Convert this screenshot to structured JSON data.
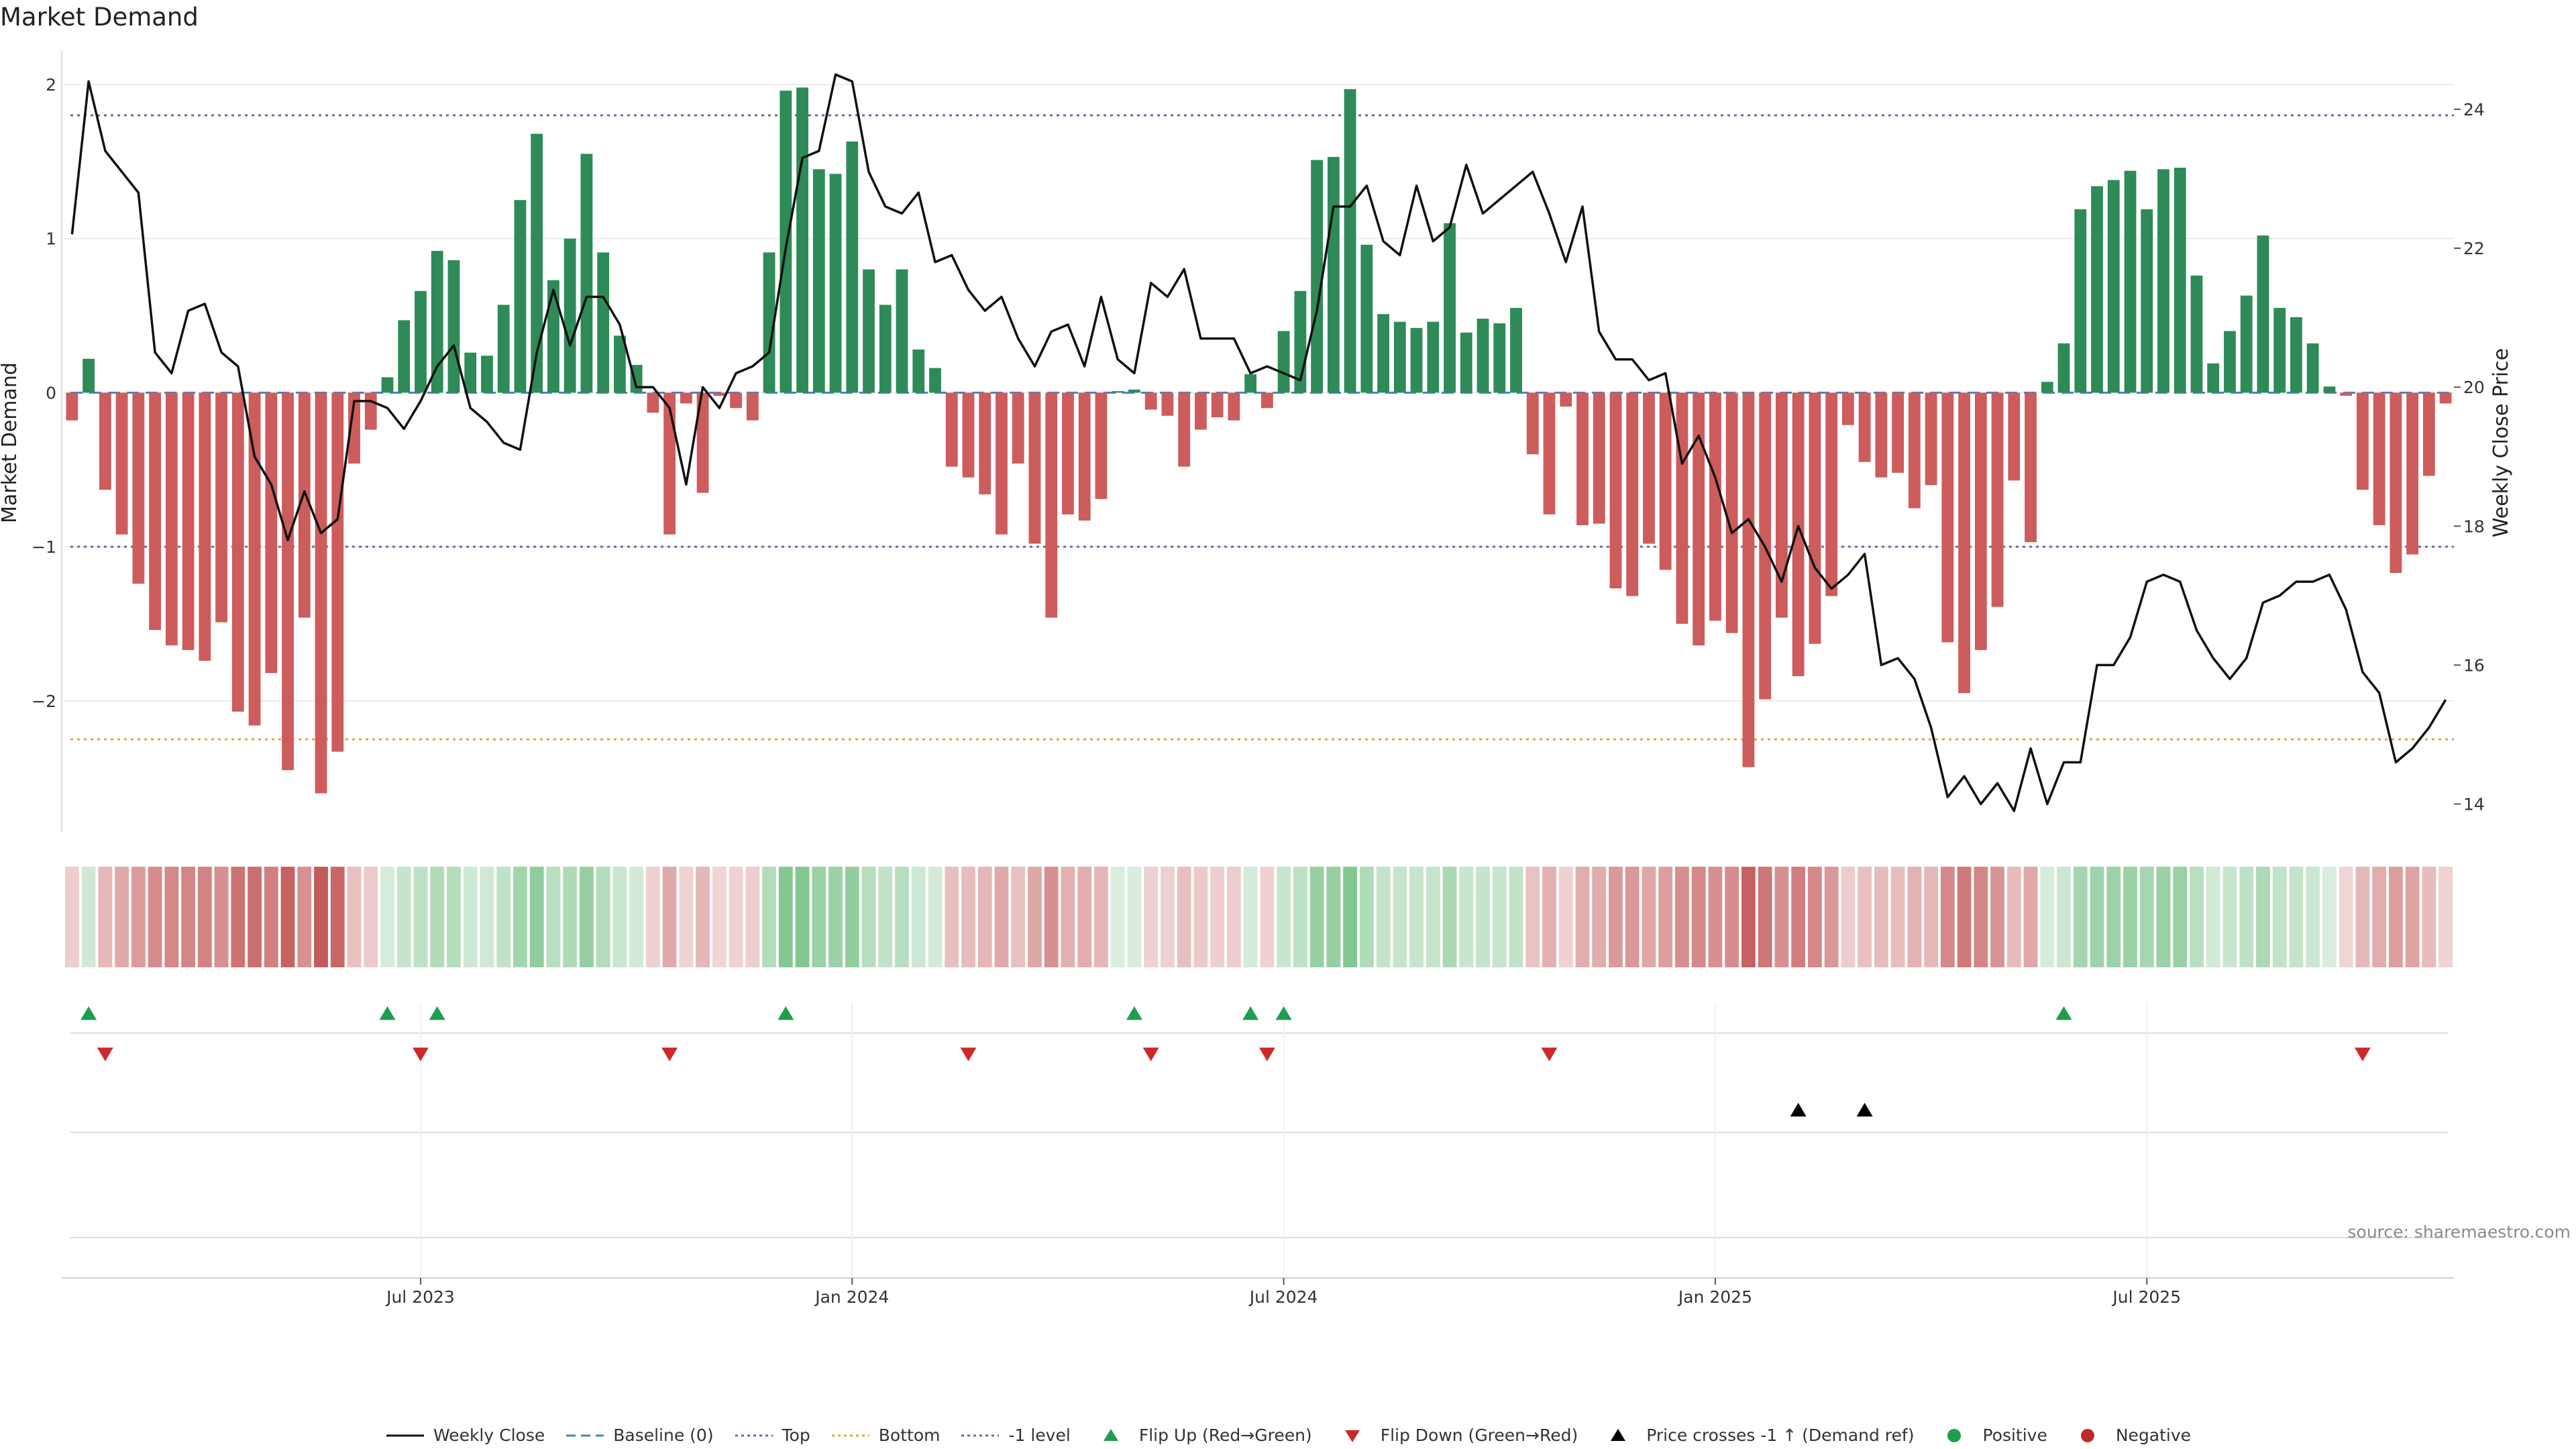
{
  "title": "Market Demand",
  "source": "source: sharemaestro.com",
  "colors": {
    "positive_bar": "#2e8b57",
    "negative_bar": "#cd5c5c",
    "price_line": "#111111",
    "baseline": "#4f7fbf",
    "top_line": "#6a6a9a",
    "bottom_line": "#e8a23a",
    "minus1_line": "#6a6a9a",
    "flip_up": "#1e9e4e",
    "flip_down": "#d02828",
    "price_cross": "#000000"
  },
  "legend": [
    {
      "label": "Weekly Close",
      "kind": "solid-line",
      "color": "#111111"
    },
    {
      "label": "Baseline (0)",
      "kind": "dashed-line",
      "color": "#4f7fbf"
    },
    {
      "label": "Top",
      "kind": "dotted-line",
      "color": "#6a6a9a"
    },
    {
      "label": "Bottom",
      "kind": "dotted-line",
      "color": "#e8a23a"
    },
    {
      "label": "-1 level",
      "kind": "dotted-line",
      "color": "#6a6a9a"
    },
    {
      "label": "Flip Up (Red→Green)",
      "kind": "triangle-up",
      "color": "#1e9e4e"
    },
    {
      "label": "Flip Down (Green→Red)",
      "kind": "triangle-down",
      "color": "#d02828"
    },
    {
      "label": "Price crosses -1 ↑ (Demand ref)",
      "kind": "triangle-up",
      "color": "#000000"
    },
    {
      "label": "Positive",
      "kind": "dot",
      "color": "#1e9e4e"
    },
    {
      "label": "Negative",
      "kind": "dot",
      "color": "#c02a2a"
    }
  ],
  "chart_data": {
    "type": "bar",
    "title": "Market Demand",
    "ylabel": "Market Demand",
    "y2label": "Weekly Close Price",
    "ylim": [
      -2.85,
      2.2
    ],
    "y_ticks": [
      -2,
      -1,
      0,
      1,
      2
    ],
    "y2lim": [
      13.6,
      24.8
    ],
    "y2_ticks": [
      14,
      16,
      18,
      20,
      22,
      24
    ],
    "reference_lines": {
      "baseline": 0,
      "top": 1.8,
      "bottom": -2.25,
      "minus1": -1
    },
    "x_tick_labels": [
      "Jul 2023",
      "Jan 2024",
      "Jul 2024",
      "Jan 2025",
      "Jul 2025"
    ],
    "x_tick_weeks": [
      21,
      47,
      73,
      99,
      125
    ],
    "grid": true,
    "legend_position": "bottom",
    "series": [
      {
        "name": "Market Demand",
        "values": [
          -0.18,
          0.22,
          -0.63,
          -0.92,
          -1.24,
          -1.54,
          -1.64,
          -1.67,
          -1.74,
          -1.49,
          -2.07,
          -2.16,
          -1.82,
          -2.45,
          -1.46,
          -2.6,
          -2.33,
          -0.46,
          -0.24,
          0.1,
          0.47,
          0.66,
          0.92,
          0.86,
          0.26,
          0.24,
          0.57,
          1.25,
          1.68,
          0.73,
          1.0,
          1.55,
          0.91,
          0.37,
          0.18,
          -0.13,
          -0.92,
          -0.07,
          -0.65,
          -0.02,
          -0.1,
          -0.18,
          0.91,
          1.96,
          1.98,
          1.45,
          1.42,
          1.63,
          0.8,
          0.57,
          0.8,
          0.28,
          0.16,
          -0.48,
          -0.55,
          -0.66,
          -0.92,
          -0.46,
          -0.98,
          -1.46,
          -0.79,
          -0.83,
          -0.69,
          0.01,
          0.02,
          -0.11,
          -0.15,
          -0.48,
          -0.24,
          -0.16,
          -0.18,
          0.12,
          -0.1,
          0.4,
          0.66,
          1.51,
          1.53,
          1.97,
          0.96,
          0.51,
          0.46,
          0.42,
          0.46,
          1.1,
          0.39,
          0.48,
          0.45,
          0.55,
          -0.4,
          -0.79,
          -0.09,
          -0.86,
          -0.85,
          -1.27,
          -1.32,
          -0.98,
          -1.15,
          -1.5,
          -1.64,
          -1.48,
          -1.56,
          -2.43,
          -1.99,
          -1.46,
          -1.84,
          -1.63,
          -1.32,
          -0.21,
          -0.45,
          -0.55,
          -0.52,
          -0.75,
          -0.6,
          -1.62,
          -1.95,
          -1.67,
          -1.39,
          -0.57,
          -0.97,
          0.07,
          0.32,
          1.19,
          1.34,
          1.38,
          1.44,
          1.19,
          1.45,
          1.46,
          0.76,
          0.19,
          0.4,
          0.63,
          1.02,
          0.55,
          0.49,
          0.32,
          0.04,
          -0.02,
          -0.63,
          -0.86,
          -1.17,
          -1.05,
          -0.54,
          -0.07
        ]
      },
      {
        "name": "Weekly Close",
        "values": [
          22.2,
          24.4,
          23.4,
          23.1,
          22.8,
          20.5,
          20.2,
          21.1,
          21.2,
          20.5,
          20.3,
          19.0,
          18.6,
          17.8,
          18.5,
          17.9,
          18.1,
          19.8,
          19.8,
          19.7,
          19.4,
          19.8,
          20.3,
          20.6,
          19.7,
          19.5,
          19.2,
          19.1,
          20.5,
          21.4,
          20.6,
          21.3,
          21.3,
          20.9,
          20.0,
          20.0,
          19.7,
          18.6,
          20.0,
          19.7,
          20.2,
          20.3,
          20.5,
          22.0,
          23.3,
          23.4,
          24.5,
          24.4,
          23.1,
          22.6,
          22.5,
          22.8,
          21.8,
          21.9,
          21.4,
          21.1,
          21.3,
          20.7,
          20.3,
          20.8,
          20.9,
          20.3,
          21.3,
          20.4,
          20.2,
          21.5,
          21.3,
          21.7,
          20.7,
          20.7,
          20.7,
          20.2,
          20.3,
          20.2,
          20.1,
          21.1,
          22.6,
          22.6,
          22.9,
          22.1,
          21.9,
          22.9,
          22.1,
          22.3,
          23.2,
          22.5,
          22.7,
          22.9,
          23.1,
          22.5,
          21.8,
          22.6,
          20.8,
          20.4,
          20.4,
          20.1,
          20.2,
          18.9,
          19.3,
          18.7,
          17.9,
          18.1,
          17.7,
          17.2,
          18.0,
          17.4,
          17.1,
          17.3,
          17.6,
          16.0,
          16.1,
          15.8,
          15.1,
          14.1,
          14.4,
          14.0,
          14.3,
          13.9,
          14.8,
          14.0,
          14.6,
          14.6,
          16.0,
          16.0,
          16.4,
          17.2,
          17.3,
          17.2,
          16.5,
          16.1,
          15.8,
          16.1,
          16.9,
          17.0,
          17.2,
          17.2,
          17.3,
          16.8,
          15.9,
          15.6,
          14.6,
          14.8,
          15.1,
          15.5
        ]
      }
    ],
    "color_strip": {
      "name": "Demand color strip",
      "values": [
        -0.18,
        0.22,
        -0.63,
        -0.92,
        -1.24,
        -1.54,
        -1.64,
        -1.67,
        -1.74,
        -1.49,
        -2.07,
        -2.16,
        -1.82,
        -2.45,
        -1.46,
        -2.6,
        -2.33,
        -0.46,
        -0.24,
        0.1,
        0.47,
        0.66,
        0.92,
        0.86,
        0.26,
        0.24,
        0.57,
        1.25,
        1.68,
        0.73,
        1.0,
        1.55,
        0.91,
        0.37,
        0.18,
        -0.13,
        -0.92,
        -0.07,
        -0.65,
        -0.02,
        -0.1,
        -0.18,
        0.91,
        1.96,
        1.98,
        1.45,
        1.42,
        1.63,
        0.8,
        0.57,
        0.8,
        0.28,
        0.16,
        -0.48,
        -0.55,
        -0.66,
        -0.92,
        -0.46,
        -0.98,
        -1.46,
        -0.79,
        -0.83,
        -0.69,
        0.01,
        0.02,
        -0.11,
        -0.15,
        -0.48,
        -0.24,
        -0.16,
        -0.18,
        0.12,
        -0.1,
        0.4,
        0.66,
        1.51,
        1.53,
        1.97,
        0.96,
        0.51,
        0.46,
        0.42,
        0.46,
        1.1,
        0.39,
        0.48,
        0.45,
        0.55,
        -0.4,
        -0.79,
        -0.09,
        -0.86,
        -0.85,
        -1.27,
        -1.32,
        -0.98,
        -1.15,
        -1.5,
        -1.64,
        -1.48,
        -1.56,
        -2.43,
        -1.99,
        -1.46,
        -1.84,
        -1.63,
        -1.32,
        -0.21,
        -0.45,
        -0.55,
        -0.52,
        -0.75,
        -0.6,
        -1.62,
        -1.95,
        -1.67,
        -1.39,
        -0.57,
        -0.97,
        0.07,
        0.32,
        1.19,
        1.34,
        1.38,
        1.44,
        1.19,
        1.45,
        1.46,
        0.76,
        0.19,
        0.4,
        0.63,
        1.02,
        0.55,
        0.49,
        0.32,
        0.04,
        -0.02,
        -0.63,
        -0.86,
        -1.17,
        -1.05,
        -0.54,
        -0.07
      ]
    },
    "markers": {
      "flip_up": [
        1,
        19,
        22,
        43,
        64,
        71,
        73,
        120
      ],
      "flip_down": [
        2,
        21,
        36,
        54,
        65,
        72,
        89,
        138
      ],
      "price_cross_up": [
        104,
        108
      ]
    }
  }
}
